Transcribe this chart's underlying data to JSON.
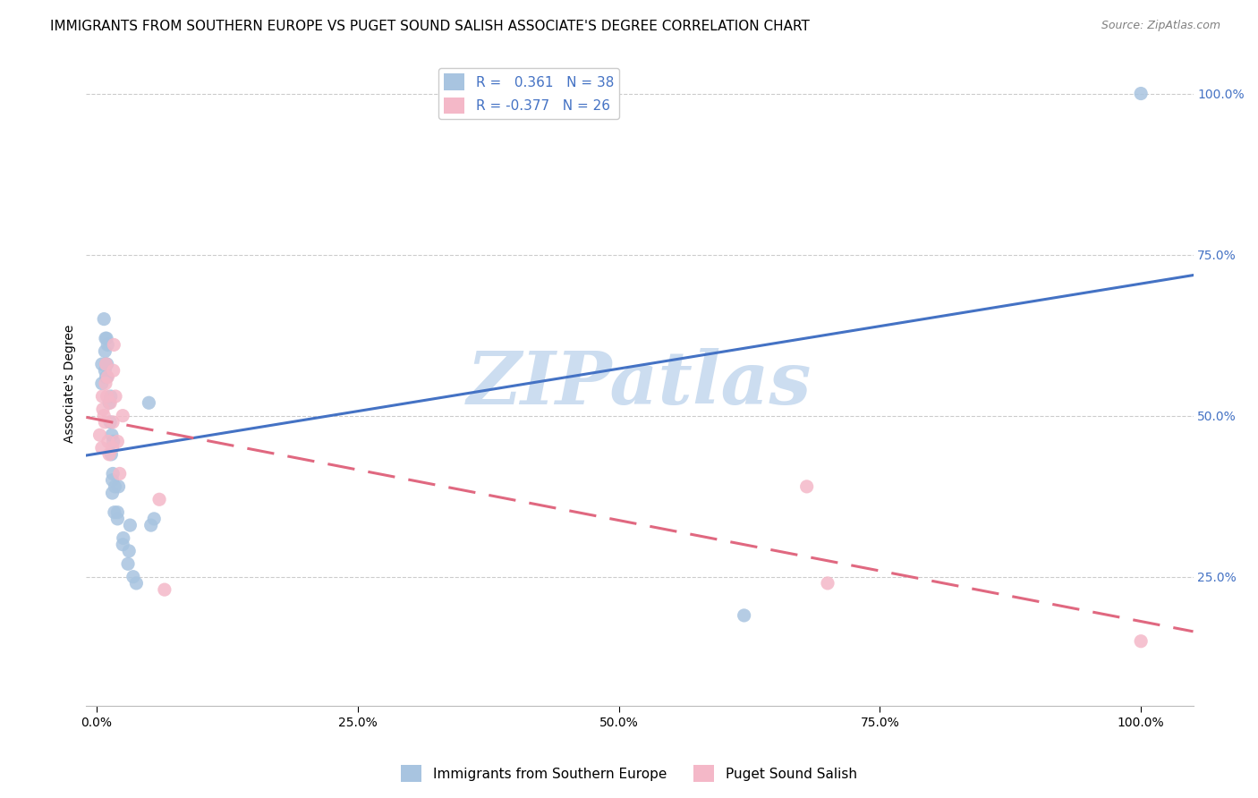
{
  "title": "IMMIGRANTS FROM SOUTHERN EUROPE VS PUGET SOUND SALISH ASSOCIATE'S DEGREE CORRELATION CHART",
  "source": "Source: ZipAtlas.com",
  "ylabel": "Associate's Degree",
  "R_blue": 0.361,
  "N_blue": 38,
  "R_pink": -0.377,
  "N_pink": 26,
  "blue_color": "#a8c4e0",
  "blue_line_color": "#4472c4",
  "pink_color": "#f4b8c8",
  "pink_line_color": "#e06880",
  "watermark_text": "ZIPatlas",
  "blue_scatter_x": [
    0.5,
    0.5,
    0.7,
    0.8,
    0.8,
    0.85,
    0.9,
    0.9,
    0.95,
    1.0,
    1.0,
    1.05,
    1.2,
    1.3,
    1.35,
    1.4,
    1.45,
    1.5,
    1.5,
    1.55,
    1.6,
    1.7,
    1.75,
    2.0,
    2.0,
    2.1,
    2.5,
    2.55,
    3.0,
    3.1,
    3.2,
    3.5,
    3.8,
    5.0,
    5.2,
    5.5,
    62.0,
    100.0
  ],
  "blue_scatter_y": [
    55.0,
    58.0,
    65.0,
    57.0,
    60.0,
    62.0,
    56.0,
    58.0,
    62.0,
    56.0,
    58.0,
    61.0,
    52.0,
    49.0,
    53.0,
    44.0,
    47.0,
    38.0,
    40.0,
    41.0,
    46.0,
    35.0,
    39.0,
    34.0,
    35.0,
    39.0,
    30.0,
    31.0,
    27.0,
    29.0,
    33.0,
    25.0,
    24.0,
    52.0,
    33.0,
    34.0,
    19.0,
    100.0
  ],
  "pink_scatter_x": [
    0.3,
    0.5,
    0.55,
    0.6,
    0.7,
    0.8,
    0.85,
    0.9,
    1.0,
    1.05,
    1.1,
    1.2,
    1.3,
    1.5,
    1.55,
    1.6,
    1.65,
    1.8,
    2.0,
    2.2,
    2.5,
    6.0,
    6.5,
    68.0,
    70.0,
    100.0
  ],
  "pink_scatter_y": [
    47.0,
    45.0,
    53.0,
    51.0,
    50.0,
    49.0,
    55.0,
    58.0,
    53.0,
    56.0,
    46.0,
    44.0,
    52.0,
    45.0,
    49.0,
    57.0,
    61.0,
    53.0,
    46.0,
    41.0,
    50.0,
    37.0,
    23.0,
    39.0,
    24.0,
    15.0
  ],
  "xlim": [
    -1.0,
    105.0
  ],
  "ylim": [
    5.0,
    105.0
  ],
  "yticks": [
    25.0,
    50.0,
    75.0,
    100.0
  ],
  "ytick_labels": [
    "25.0%",
    "50.0%",
    "75.0%",
    "100.0%"
  ],
  "xticks": [
    0.0,
    25.0,
    50.0,
    75.0,
    100.0
  ],
  "xtick_labels": [
    "0.0%",
    "25.0%",
    "50.0%",
    "75.0%",
    "100.0%"
  ],
  "grid_color": "#cccccc",
  "background_color": "#ffffff",
  "title_fontsize": 11,
  "axis_label_fontsize": 10,
  "tick_fontsize": 10,
  "watermark_color": "#ccddf0",
  "watermark_fontsize": 60,
  "marker_size": 120
}
